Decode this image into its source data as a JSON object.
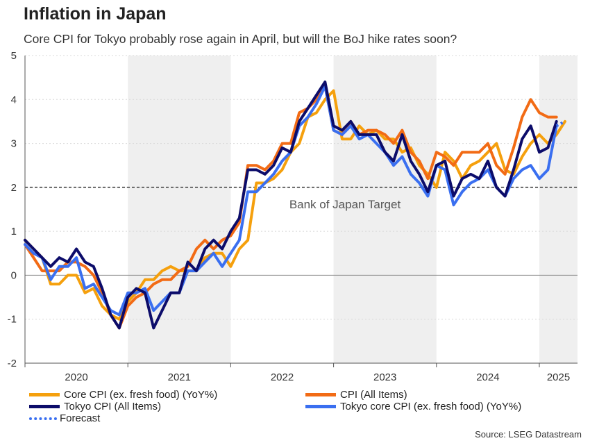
{
  "title": "Inflation in Japan",
  "subtitle": "Core CPI for Tokyo probably rose again in April, but will the BoJ hike rates soon?",
  "source": "Source: LSEG Datastream",
  "chart_data": {
    "type": "line",
    "ylim": [
      -2,
      5
    ],
    "yticks": [
      "5",
      "4",
      "3",
      "2",
      "1",
      "0",
      "-1",
      "-2"
    ],
    "ytick_values": [
      5,
      4,
      3,
      2,
      1,
      0,
      -1,
      -2
    ],
    "x_start": "2020-01",
    "x_months": 66,
    "year_labels": [
      "2020",
      "2021",
      "2022",
      "2023",
      "2024",
      "2025"
    ],
    "shaded_years": [
      "2021",
      "2023",
      "2025"
    ],
    "reference_line": {
      "value": 2,
      "label": "Bank of Japan Target"
    },
    "series": [
      {
        "name": "Core CPI (ex. fresh food) (YoY%)",
        "color": "#f5a00d",
        "style": "solid",
        "values": [
          0.8,
          0.6,
          0.4,
          -0.2,
          -0.2,
          0.0,
          0.0,
          -0.4,
          -0.3,
          -0.7,
          -0.9,
          -1.0,
          -0.6,
          -0.4,
          -0.1,
          -0.1,
          0.1,
          0.2,
          0.1,
          0.1,
          0.1,
          0.4,
          0.5,
          0.5,
          0.2,
          0.6,
          0.8,
          2.1,
          2.1,
          2.2,
          2.4,
          2.8,
          3.0,
          3.6,
          3.7,
          4.0,
          4.2,
          3.1,
          3.1,
          3.4,
          3.2,
          3.3,
          3.1,
          3.1,
          2.8,
          2.9,
          2.5,
          2.3,
          2.0,
          2.8,
          2.6,
          2.2,
          2.5,
          2.6,
          2.8,
          3.0,
          2.4,
          2.3,
          2.7,
          3.0,
          3.2,
          3.0,
          3.2,
          3.5
        ]
      },
      {
        "name": "CPI (All Items)",
        "color": "#f26b15",
        "style": "solid",
        "values": [
          0.7,
          0.4,
          0.1,
          0.1,
          0.1,
          0.3,
          0.3,
          0.2,
          0.0,
          -0.4,
          -0.9,
          -1.2,
          -0.7,
          -0.5,
          -0.4,
          -0.2,
          -0.1,
          -0.1,
          0.1,
          0.2,
          0.6,
          0.8,
          0.6,
          0.8,
          0.9,
          1.2,
          2.5,
          2.5,
          2.4,
          2.6,
          3.0,
          3.0,
          3.7,
          3.8,
          4.0,
          4.3,
          3.3,
          3.2,
          3.5,
          3.2,
          3.3,
          3.3,
          3.2,
          3.0,
          3.3,
          2.8,
          2.6,
          2.2,
          2.8,
          2.7,
          2.5,
          2.8,
          2.8,
          2.8,
          3.0,
          2.5,
          2.3,
          2.9,
          3.6,
          4.0,
          3.7,
          3.6,
          3.6
        ]
      },
      {
        "name": "Tokyo CPI (All Items)",
        "color": "#0c0c6a",
        "style": "solid",
        "values": [
          0.8,
          0.6,
          0.4,
          0.2,
          0.4,
          0.3,
          0.6,
          0.3,
          0.2,
          -0.3,
          -0.9,
          -1.2,
          -0.5,
          -0.3,
          -0.4,
          -1.2,
          -0.8,
          -0.4,
          -0.4,
          0.3,
          0.1,
          0.6,
          0.8,
          0.6,
          1.0,
          1.3,
          2.4,
          2.4,
          2.3,
          2.5,
          2.9,
          2.8,
          3.5,
          3.8,
          4.1,
          4.4,
          3.4,
          3.3,
          3.5,
          3.2,
          3.2,
          3.2,
          2.8,
          2.6,
          3.2,
          2.6,
          2.3,
          1.9,
          2.5,
          2.6,
          1.8,
          2.2,
          2.3,
          2.2,
          2.6,
          2.0,
          1.8,
          2.4,
          3.1,
          3.4,
          2.8,
          2.9,
          3.5
        ]
      },
      {
        "name": "Tokyo core CPI (ex. fresh food) (YoY%)",
        "color": "#3a6ff0",
        "style": "solid",
        "values": [
          0.7,
          0.5,
          0.4,
          -0.1,
          0.2,
          0.2,
          0.4,
          -0.3,
          -0.2,
          -0.5,
          -0.8,
          -0.9,
          -0.4,
          -0.4,
          -0.3,
          -0.8,
          -0.6,
          -0.4,
          -0.4,
          0.1,
          0.1,
          0.3,
          0.5,
          0.2,
          0.5,
          0.8,
          1.9,
          1.9,
          2.1,
          2.3,
          2.6,
          2.8,
          3.4,
          3.6,
          3.9,
          4.3,
          3.3,
          3.2,
          3.4,
          3.1,
          3.2,
          3.0,
          2.8,
          2.5,
          2.7,
          2.3,
          2.1,
          1.8,
          2.5,
          2.4,
          1.6,
          1.9,
          2.1,
          2.2,
          2.4,
          2.0,
          1.8,
          2.2,
          2.4,
          2.5,
          2.2,
          2.4,
          3.4
        ]
      },
      {
        "name": "Forecast",
        "color": "#3a6ff0",
        "style": "dotted",
        "x_offset": 62,
        "values": [
          3.4,
          3.5
        ]
      }
    ],
    "legend": [
      "Core CPI (ex. fresh food) (YoY%)",
      "CPI (All Items)",
      "Tokyo CPI (All Items)",
      "Tokyo core CPI (ex. fresh food) (YoY%)",
      "Forecast"
    ]
  }
}
